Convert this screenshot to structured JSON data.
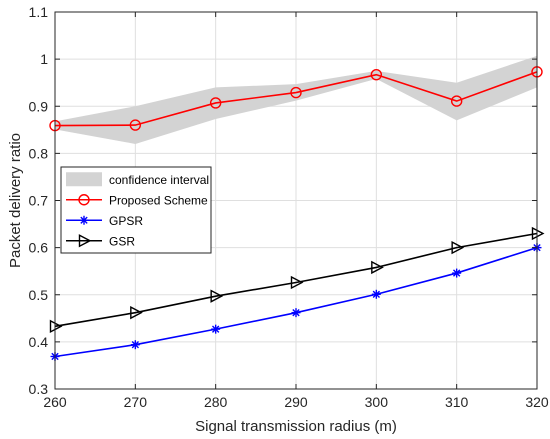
{
  "chart_data": {
    "type": "line",
    "title": "",
    "xlabel": "Signal transmission radius (m)",
    "ylabel": "Packet delivery ratio",
    "xlim": [
      260,
      320
    ],
    "ylim": [
      0.3,
      1.1
    ],
    "x": [
      260,
      270,
      280,
      290,
      300,
      310,
      320
    ],
    "xticks": [
      "260",
      "270",
      "280",
      "290",
      "300",
      "310",
      "320"
    ],
    "yticks": [
      "0.3",
      "0.4",
      "0.5",
      "0.6",
      "0.7",
      "0.8",
      "0.9",
      "1",
      "1.1"
    ],
    "grid": true,
    "legend_position": "center-left",
    "confidence_interval": {
      "name": "confidence interval",
      "color": "#d3d3d3",
      "upper": [
        0.868,
        0.9,
        0.94,
        0.947,
        0.975,
        0.95,
        1.007
      ],
      "lower": [
        0.851,
        0.82,
        0.873,
        0.912,
        0.958,
        0.87,
        0.94
      ]
    },
    "series": [
      {
        "name": "Proposed Scheme",
        "color": "#ff0000",
        "marker": "circle",
        "values": [
          0.859,
          0.86,
          0.907,
          0.929,
          0.967,
          0.911,
          0.973
        ]
      },
      {
        "name": "GPSR",
        "color": "#0000ff",
        "marker": "asterisk",
        "values": [
          0.369,
          0.394,
          0.427,
          0.462,
          0.501,
          0.546,
          0.6
        ]
      },
      {
        "name": "GSR",
        "color": "#000000",
        "marker": "triangle-right",
        "values": [
          0.433,
          0.462,
          0.497,
          0.526,
          0.558,
          0.6,
          0.63
        ]
      }
    ]
  }
}
